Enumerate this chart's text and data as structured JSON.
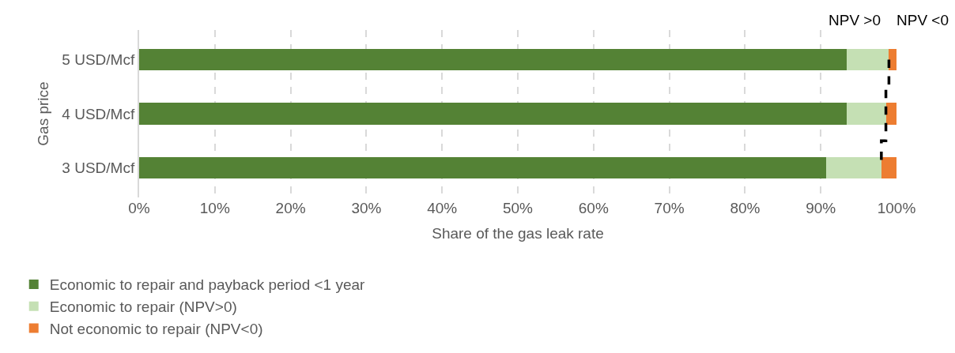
{
  "chart_data": {
    "type": "bar",
    "orientation": "horizontal",
    "stacked": true,
    "categories": [
      "5 USD/Mcf",
      "4 USD/Mcf",
      "3 USD/Mcf"
    ],
    "xlabel": "Share of the gas leak rate",
    "ylabel": "Gas price",
    "series": [
      {
        "name": "Economic to repair and payback period <1 year",
        "color": "#548235",
        "values": [
          93.4,
          93.4,
          90.7
        ]
      },
      {
        "name": "Economic to repair (NPV>0)",
        "color": "#c5e0b4",
        "values": [
          5.6,
          5.2,
          7.3
        ]
      },
      {
        "name": "Not economic to repair (NPV<0)",
        "color": "#ed7d31",
        "values": [
          1.0,
          1.4,
          2.0
        ]
      },
      {
        "type": "step",
        "color": "#000000",
        "line_style": "dashed",
        "values": [
          99.0,
          98.6,
          98.0
        ]
      }
    ],
    "xlim": [
      0,
      100
    ],
    "xticks": [
      {
        "value": 0,
        "label": "0%"
      },
      {
        "value": 10,
        "label": "10%"
      },
      {
        "value": 20,
        "label": "20%"
      },
      {
        "value": 30,
        "label": "30%"
      },
      {
        "value": 40,
        "label": "40%"
      },
      {
        "value": 50,
        "label": "50%"
      },
      {
        "value": 60,
        "label": "60%"
      },
      {
        "value": 70,
        "label": "70%"
      },
      {
        "value": 80,
        "label": "80%"
      },
      {
        "value": 90,
        "label": "90%"
      },
      {
        "value": 100,
        "label": "100%"
      }
    ],
    "annotations": [
      "NPV >0",
      "NPV <0"
    ],
    "grid": "x",
    "legend": "bottom"
  }
}
